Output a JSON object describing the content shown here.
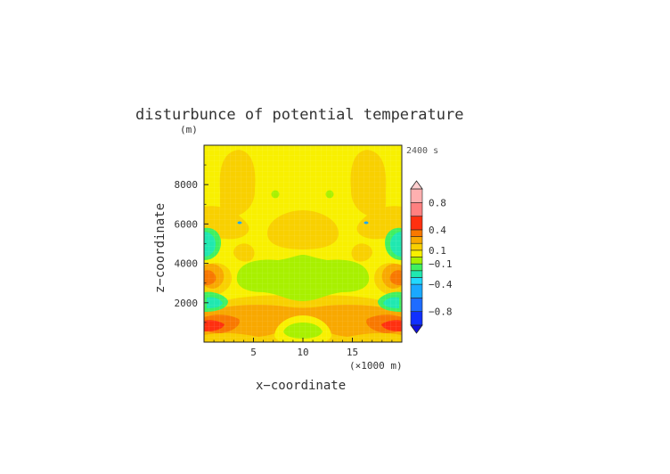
{
  "chart_data": {
    "type": "heatmap",
    "title": "disturbunce of potential temperature",
    "y_unit": "(m)",
    "time_label": "2400 s",
    "xlabel": "x−coordinate",
    "ylabel": "z−coordinate",
    "x_unit": "(×1000 m)",
    "xlim": [
      0,
      20
    ],
    "ylim": [
      0,
      10000
    ],
    "x_ticks": [
      5,
      10,
      15
    ],
    "x_tick_labels": [
      "5",
      "10",
      "15"
    ],
    "y_ticks": [
      2000,
      4000,
      6000,
      8000
    ],
    "y_tick_labels": [
      "2000",
      "4000",
      "6000",
      "8000"
    ],
    "colorbar": {
      "levels": [
        -1.0,
        -0.8,
        -0.6,
        -0.4,
        -0.3,
        -0.2,
        -0.1,
        0.0,
        0.1,
        0.2,
        0.3,
        0.4,
        0.6,
        0.8,
        1.0
      ],
      "colors": [
        "#1030ff",
        "#1e6cff",
        "#1aa8ff",
        "#22d8ff",
        "#20e8b0",
        "#40f060",
        "#a8f000",
        "#f8f000",
        "#f8d000",
        "#f8a800",
        "#f87800",
        "#ff3010",
        "#ff8080",
        "#ffb0b0"
      ],
      "under_color": "#1010e0",
      "over_color": "#ffd0d0",
      "tick_values": [
        0.8,
        0.4,
        0.1,
        -0.1,
        -0.4,
        -0.8
      ],
      "tick_labels": [
        "0.8",
        "0.4",
        "0.1",
        "−0.1",
        "−0.4",
        "−0.8"
      ]
    }
  }
}
